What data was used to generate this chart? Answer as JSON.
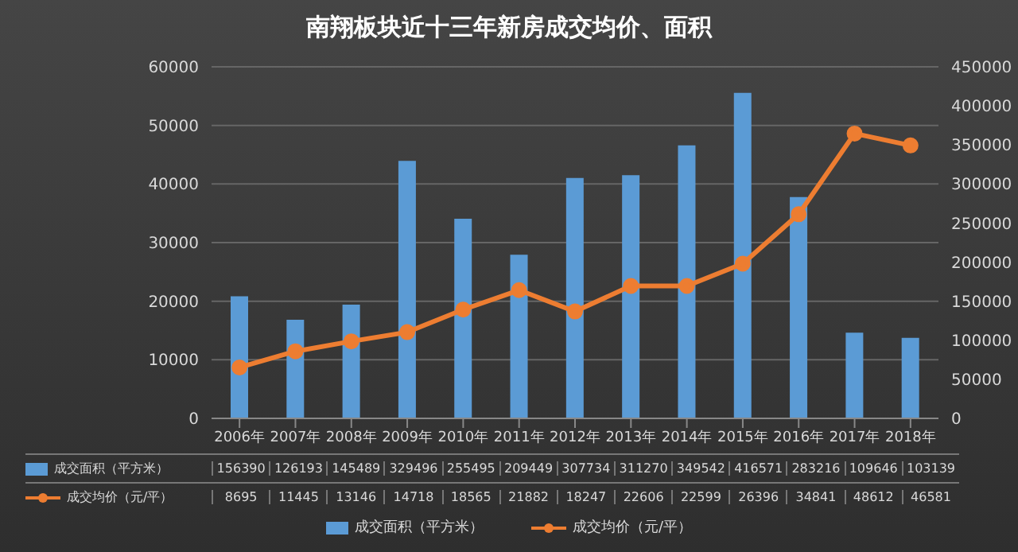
{
  "chart_data": {
    "type": "bar",
    "title": "南翔板块近十三年新房成交均价、面积",
    "categories": [
      "2006年",
      "2007年",
      "2008年",
      "2009年",
      "2010年",
      "2011年",
      "2012年",
      "2013年",
      "2014年",
      "2015年",
      "2016年",
      "2017年",
      "2018年"
    ],
    "series": [
      {
        "name": "成交面积（平方米）",
        "axis": "y2",
        "color": "#5b9bd5",
        "values": [
          156390,
          126193,
          145489,
          329496,
          255495,
          209449,
          307734,
          311270,
          349542,
          416571,
          283216,
          109646,
          103139
        ]
      },
      {
        "name": "成交均价（元/平）",
        "type": "line",
        "axis": "y",
        "color": "#ed7d31",
        "marker": "circle",
        "values": [
          8695,
          11445,
          13146,
          14718,
          18565,
          21882,
          18247,
          22606,
          22599,
          26396,
          34841,
          48612,
          46581
        ]
      }
    ],
    "ylim": [
      0,
      60000
    ],
    "yticks": [
      0,
      10000,
      20000,
      30000,
      40000,
      50000,
      60000
    ],
    "y2lim": [
      0,
      450000
    ],
    "y2ticks": [
      0,
      50000,
      100000,
      150000,
      200000,
      250000,
      300000,
      350000,
      400000,
      450000
    ],
    "grid": "y",
    "legend": "bottom",
    "data_labels": true
  }
}
